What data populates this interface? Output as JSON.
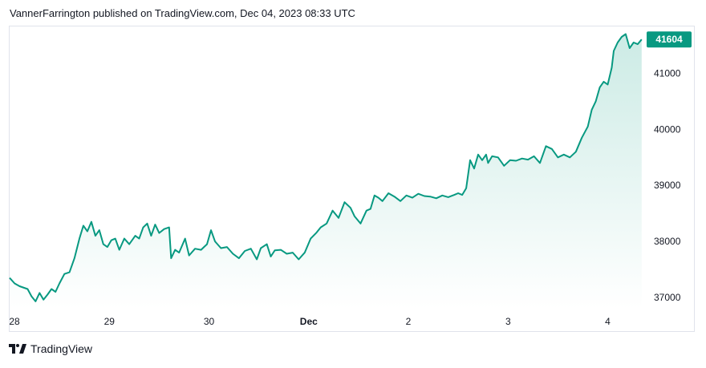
{
  "header": {
    "text": "VannerFarrington published on TradingView.com, Dec 04, 2023 08:33 UTC"
  },
  "footer": {
    "brand": "TradingView",
    "logo_icon": "tradingview-logo-icon"
  },
  "colors": {
    "line": "#089981",
    "fill_top": "#ccebe5",
    "fill_bottom": "#ffffff",
    "price_tag": "#089981",
    "border": "#e0e3eb"
  },
  "chart_data": {
    "type": "area",
    "title": "",
    "xlabel": "",
    "ylabel": "",
    "x_tick_labels": [
      "28",
      "29",
      "30",
      "Dec",
      "2",
      "3",
      "4"
    ],
    "x_tick_positions_days": [
      0,
      1,
      2,
      3,
      4,
      5,
      6
    ],
    "y_ticks": [
      37000,
      38000,
      39000,
      40000,
      41000
    ],
    "ylim": [
      36800,
      41850
    ],
    "xlim_days": [
      0,
      6.35
    ],
    "last_price": 41604,
    "grid": false,
    "legend": "none",
    "series": [
      {
        "x_days": [
          0,
          0.05,
          0.1,
          0.18,
          0.22,
          0.26,
          0.3,
          0.34,
          0.38,
          0.42,
          0.46,
          0.5,
          0.55,
          0.6,
          0.65,
          0.7,
          0.74,
          0.78,
          0.82,
          0.86,
          0.9,
          0.94,
          0.98,
          1.02,
          1.06,
          1.1,
          1.15,
          1.2,
          1.26,
          1.3,
          1.34,
          1.38,
          1.42,
          1.46,
          1.5,
          1.55,
          1.6,
          1.62,
          1.66,
          1.7,
          1.76,
          1.8,
          1.86,
          1.92,
          1.98,
          2.02,
          2.06,
          2.12,
          2.18,
          2.24,
          2.3,
          2.36,
          2.42,
          2.48,
          2.52,
          2.58,
          2.62,
          2.66,
          2.72,
          2.78,
          2.84,
          2.9,
          2.96,
          3.02,
          3.08,
          3.12,
          3.18,
          3.24,
          3.3,
          3.36,
          3.42,
          3.46,
          3.52,
          3.58,
          3.62,
          3.66,
          3.7,
          3.74,
          3.8,
          3.86,
          3.92,
          3.98,
          4.04,
          4.1,
          4.16,
          4.22,
          4.28,
          4.34,
          4.4,
          4.46,
          4.5,
          4.54,
          4.58,
          4.62,
          4.66,
          4.7,
          4.74,
          4.78,
          4.8,
          4.84,
          4.9,
          4.96,
          5.02,
          5.08,
          5.14,
          5.2,
          5.26,
          5.32,
          5.38,
          5.44,
          5.5,
          5.56,
          5.62,
          5.68,
          5.74,
          5.8,
          5.84,
          5.88,
          5.92,
          5.96,
          6.0,
          6.04,
          6.06,
          6.1,
          6.14,
          6.18,
          6.22,
          6.26,
          6.3,
          6.34
        ],
        "y": [
          37350,
          37250,
          37200,
          37150,
          37020,
          36930,
          37080,
          36960,
          37050,
          37150,
          37100,
          37250,
          37420,
          37450,
          37700,
          38050,
          38280,
          38180,
          38350,
          38100,
          38200,
          37950,
          37900,
          38020,
          38050,
          37850,
          38050,
          37950,
          38100,
          38050,
          38250,
          38320,
          38100,
          38300,
          38150,
          38220,
          38250,
          37700,
          37850,
          37800,
          38050,
          37750,
          37870,
          37850,
          37950,
          38200,
          38000,
          37880,
          37900,
          37780,
          37700,
          37830,
          37870,
          37680,
          37880,
          37950,
          37730,
          37840,
          37850,
          37780,
          37800,
          37680,
          37800,
          38050,
          38160,
          38250,
          38320,
          38550,
          38420,
          38700,
          38600,
          38450,
          38320,
          38550,
          38580,
          38820,
          38780,
          38720,
          38860,
          38800,
          38720,
          38820,
          38780,
          38850,
          38810,
          38800,
          38770,
          38820,
          38790,
          38830,
          38860,
          38830,
          38950,
          39450,
          39300,
          39550,
          39450,
          39550,
          39400,
          39520,
          39500,
          39350,
          39450,
          39440,
          39480,
          39460,
          39520,
          39400,
          39700,
          39650,
          39500,
          39550,
          39500,
          39600,
          39850,
          40050,
          40350,
          40500,
          40750,
          40850,
          40800,
          41100,
          41400,
          41550,
          41650,
          41700,
          41450,
          41550,
          41520,
          41604
        ]
      }
    ]
  }
}
